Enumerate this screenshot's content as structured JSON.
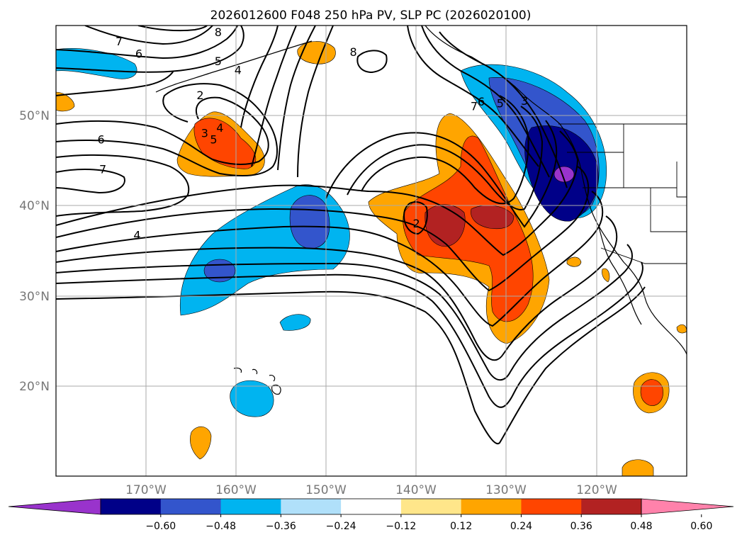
{
  "title": "2026012600 F048 250 hPa PV, SLP PC (2026020100)",
  "map": {
    "lon_range": [
      -180,
      -110
    ],
    "lat_range": [
      10,
      60
    ],
    "lat_ticks": [
      {
        "value": 50,
        "label": "50°N"
      },
      {
        "value": 40,
        "label": "40°N"
      },
      {
        "value": 30,
        "label": "30°N"
      },
      {
        "value": 20,
        "label": "20°N"
      }
    ],
    "lon_ticks": [
      {
        "value": -170,
        "label": "170°W"
      },
      {
        "value": -160,
        "label": "160°W"
      },
      {
        "value": -150,
        "label": "150°W"
      },
      {
        "value": -140,
        "label": "140°W"
      },
      {
        "value": -130,
        "label": "130°W"
      },
      {
        "value": -120,
        "label": "120°W"
      }
    ],
    "grid": true
  },
  "colorbar": {
    "orientation": "horizontal",
    "extend": "both",
    "colors": [
      "#9933cc",
      "#000088",
      "#3355cc",
      "#00b4f0",
      "#b0e0fa",
      "#ffffff",
      "#ffe68a",
      "#ffa500",
      "#ff4500",
      "#b22222",
      "#ff82ab"
    ],
    "tick_labels": [
      "−0.60",
      "−0.48",
      "−0.36",
      "−0.24",
      "−0.12",
      "0.12",
      "0.24",
      "0.36",
      "0.48",
      "0.60"
    ]
  },
  "contour_labels": [
    {
      "text": "8",
      "lon": -162.0,
      "lat": 59.2
    },
    {
      "text": "7",
      "lon": -173.0,
      "lat": 58.2
    },
    {
      "text": "6",
      "lon": -170.8,
      "lat": 56.8
    },
    {
      "text": "5",
      "lon": -162.0,
      "lat": 56.0
    },
    {
      "text": "4",
      "lon": -159.8,
      "lat": 55.0
    },
    {
      "text": "2",
      "lon": -164.0,
      "lat": 52.2
    },
    {
      "text": "3",
      "lon": -163.5,
      "lat": 48.0
    },
    {
      "text": "4",
      "lon": -161.8,
      "lat": 48.6
    },
    {
      "text": "5",
      "lon": -162.5,
      "lat": 47.3
    },
    {
      "text": "6",
      "lon": -175.0,
      "lat": 47.3
    },
    {
      "text": "7",
      "lon": -174.8,
      "lat": 44.0
    },
    {
      "text": "4",
      "lon": -171.0,
      "lat": 36.7
    },
    {
      "text": "2",
      "lon": -140.0,
      "lat": 38.0
    },
    {
      "text": "7",
      "lon": -133.6,
      "lat": 51.0
    },
    {
      "text": "6",
      "lon": -132.8,
      "lat": 51.5
    },
    {
      "text": "5",
      "lon": -130.7,
      "lat": 51.3
    },
    {
      "text": "3",
      "lon": -128.0,
      "lat": 51.6
    },
    {
      "text": "8",
      "lon": -147.0,
      "lat": 57.0
    }
  ]
}
